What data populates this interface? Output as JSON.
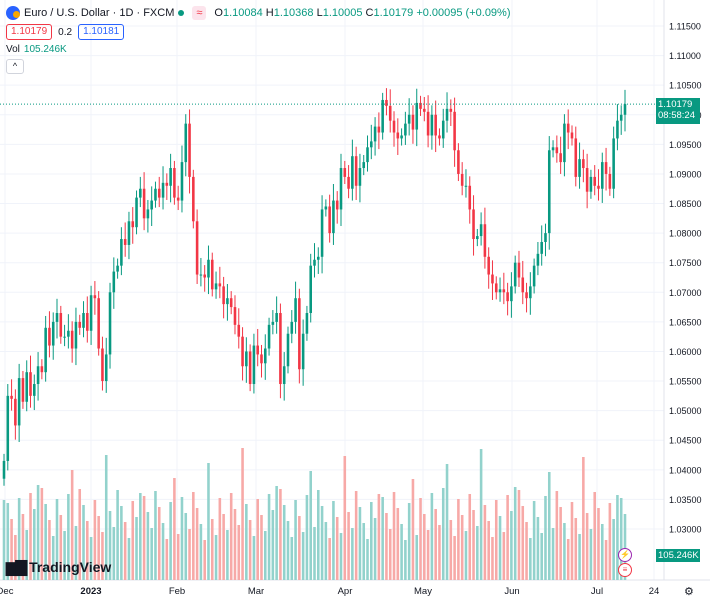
{
  "header": {
    "symbol": "Euro / U.S. Dollar · 1D · FXCM",
    "o_label": "O",
    "o": "1.10084",
    "h_label": "H",
    "h": "1.10368",
    "l_label": "L",
    "l": "1.10005",
    "c_label": "C",
    "c": "1.10179",
    "change": "+0.00095 (+0.09%)",
    "sell_price": "1.10179",
    "spread": "0.2",
    "buy_price": "1.10181",
    "vol_label": "Vol",
    "vol_value": "105.246K",
    "collapse_glyph": "^"
  },
  "last_price_tag": {
    "price": "1.10179",
    "countdown": "08:58:24"
  },
  "volume_tag": "105.246K",
  "logo": "TradingView",
  "colors": {
    "up": "#089981",
    "down": "#f23645",
    "vol_up": "#92d2cc",
    "vol_down": "#f7a9a7",
    "grid": "#f0f3fa"
  },
  "chart_data": {
    "type": "candlestick",
    "x_labels": [
      "Dec",
      "2023",
      "Feb",
      "Mar",
      "Apr",
      "May",
      "Jun",
      "Jul",
      "24"
    ],
    "y_ticks": [
      "1.11500",
      "1.11000",
      "1.10500",
      "1.10000",
      "1.09500",
      "1.09000",
      "1.08500",
      "1.08000",
      "1.07500",
      "1.07000",
      "1.06500",
      "1.06000",
      "1.05500",
      "1.05000",
      "1.04500",
      "1.04000",
      "1.03500",
      "1.03000"
    ],
    "y_range": [
      1.025,
      1.115
    ],
    "last_price": 1.10179,
    "candles_close": [
      1.0415,
      1.0525,
      1.052,
      1.0475,
      1.0555,
      1.0515,
      1.0565,
      1.0525,
      1.0545,
      1.0575,
      1.0565,
      1.064,
      1.061,
      1.065,
      1.0665,
      1.0625,
      1.0625,
      1.0635,
      1.0605,
      1.065,
      1.064,
      1.0665,
      1.0635,
      1.0695,
      1.069,
      1.0605,
      1.055,
      1.0595,
      1.07,
      1.0735,
      1.0745,
      1.079,
      1.078,
      1.082,
      1.081,
      1.086,
      1.0875,
      1.0825,
      1.084,
      1.0855,
      1.0875,
      1.086,
      1.0885,
      1.088,
      1.091,
      1.086,
      1.0855,
      1.092,
      1.0985,
      1.0895,
      1.082,
      1.073,
      1.073,
      1.0725,
      1.0755,
      1.0705,
      1.0715,
      1.071,
      1.068,
      1.069,
      1.0675,
      1.0645,
      1.0625,
      1.0575,
      1.06,
      1.0545,
      1.061,
      1.0595,
      1.058,
      1.0605,
      1.0645,
      1.065,
      1.0665,
      1.0545,
      1.0575,
      1.063,
      1.065,
      1.069,
      1.057,
      1.063,
      1.0665,
      1.0745,
      1.0755,
      1.076,
      1.084,
      1.0845,
      1.08,
      1.0855,
      1.084,
      1.091,
      1.0895,
      1.0875,
      1.093,
      1.088,
      1.091,
      1.092,
      1.0945,
      1.0955,
      1.098,
      1.097,
      1.1025,
      1.1015,
      1.099,
      1.097,
      1.096,
      1.0965,
      1.0985,
      1.1,
      1.0975,
      1.102,
      1.101,
      1.1005,
      1.0965,
      1.1,
      1.0965,
      1.096,
      1.099,
      1.101,
      1.1005,
      1.094,
      1.09,
      1.088,
      1.088,
      1.084,
      1.079,
      1.0795,
      1.0815,
      1.076,
      1.073,
      1.0715,
      1.07,
      1.0705,
      1.07,
      1.0685,
      1.071,
      1.075,
      1.0725,
      1.07,
      1.069,
      1.071,
      1.0745,
      1.0765,
      1.0785,
      1.08,
      1.094,
      1.0945,
      1.0935,
      1.092,
      1.0985,
      1.097,
      1.096,
      1.0895,
      1.0925,
      1.091,
      1.087,
      1.0895,
      1.088,
      1.0875,
      1.092,
      1.09,
      1.0875,
      1.096,
      1.099,
      1.1,
      1.1018
    ],
    "volume_up": true
  }
}
